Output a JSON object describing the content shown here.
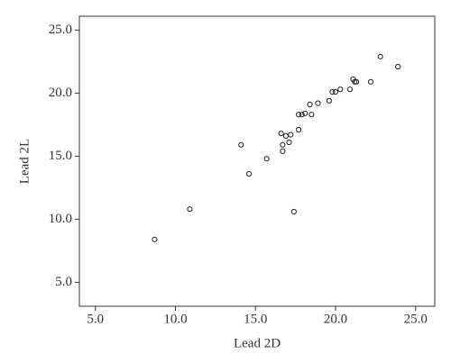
{
  "chart_data": {
    "type": "scatter",
    "xlabel": "Lead 2D",
    "ylabel": "Lead 2L",
    "xlim": [
      4.0,
      26.2
    ],
    "ylim": [
      3.1,
      26.1
    ],
    "xticks": [
      {
        "value": 5,
        "label": "5.0"
      },
      {
        "value": 10,
        "label": "10.0"
      },
      {
        "value": 15,
        "label": "15.0"
      },
      {
        "value": 20,
        "label": "20.0"
      },
      {
        "value": 25,
        "label": "25.0"
      }
    ],
    "yticks": [
      {
        "value": 5,
        "label": "5.0"
      },
      {
        "value": 10,
        "label": "10.0"
      },
      {
        "value": 15,
        "label": "15.0"
      },
      {
        "value": 20,
        "label": "20.0"
      },
      {
        "value": 25,
        "label": "25.0"
      }
    ],
    "color": "#222222",
    "x": [
      8.7,
      10.9,
      14.1,
      14.6,
      15.7,
      16.6,
      16.7,
      16.7,
      16.9,
      17.1,
      17.2,
      17.4,
      17.7,
      17.7,
      17.9,
      18.1,
      18.4,
      18.5,
      18.9,
      19.6,
      19.8,
      20.0,
      20.3,
      20.9,
      21.1,
      21.2,
      21.3,
      22.2,
      22.8,
      23.9
    ],
    "values": [
      8.4,
      10.8,
      15.9,
      13.6,
      14.8,
      16.8,
      15.9,
      15.4,
      16.6,
      16.1,
      16.7,
      10.6,
      17.1,
      18.3,
      18.3,
      18.4,
      19.1,
      18.3,
      19.2,
      19.4,
      20.1,
      20.1,
      20.3,
      20.3,
      21.1,
      20.9,
      20.9,
      20.9,
      22.9,
      22.1
    ]
  }
}
